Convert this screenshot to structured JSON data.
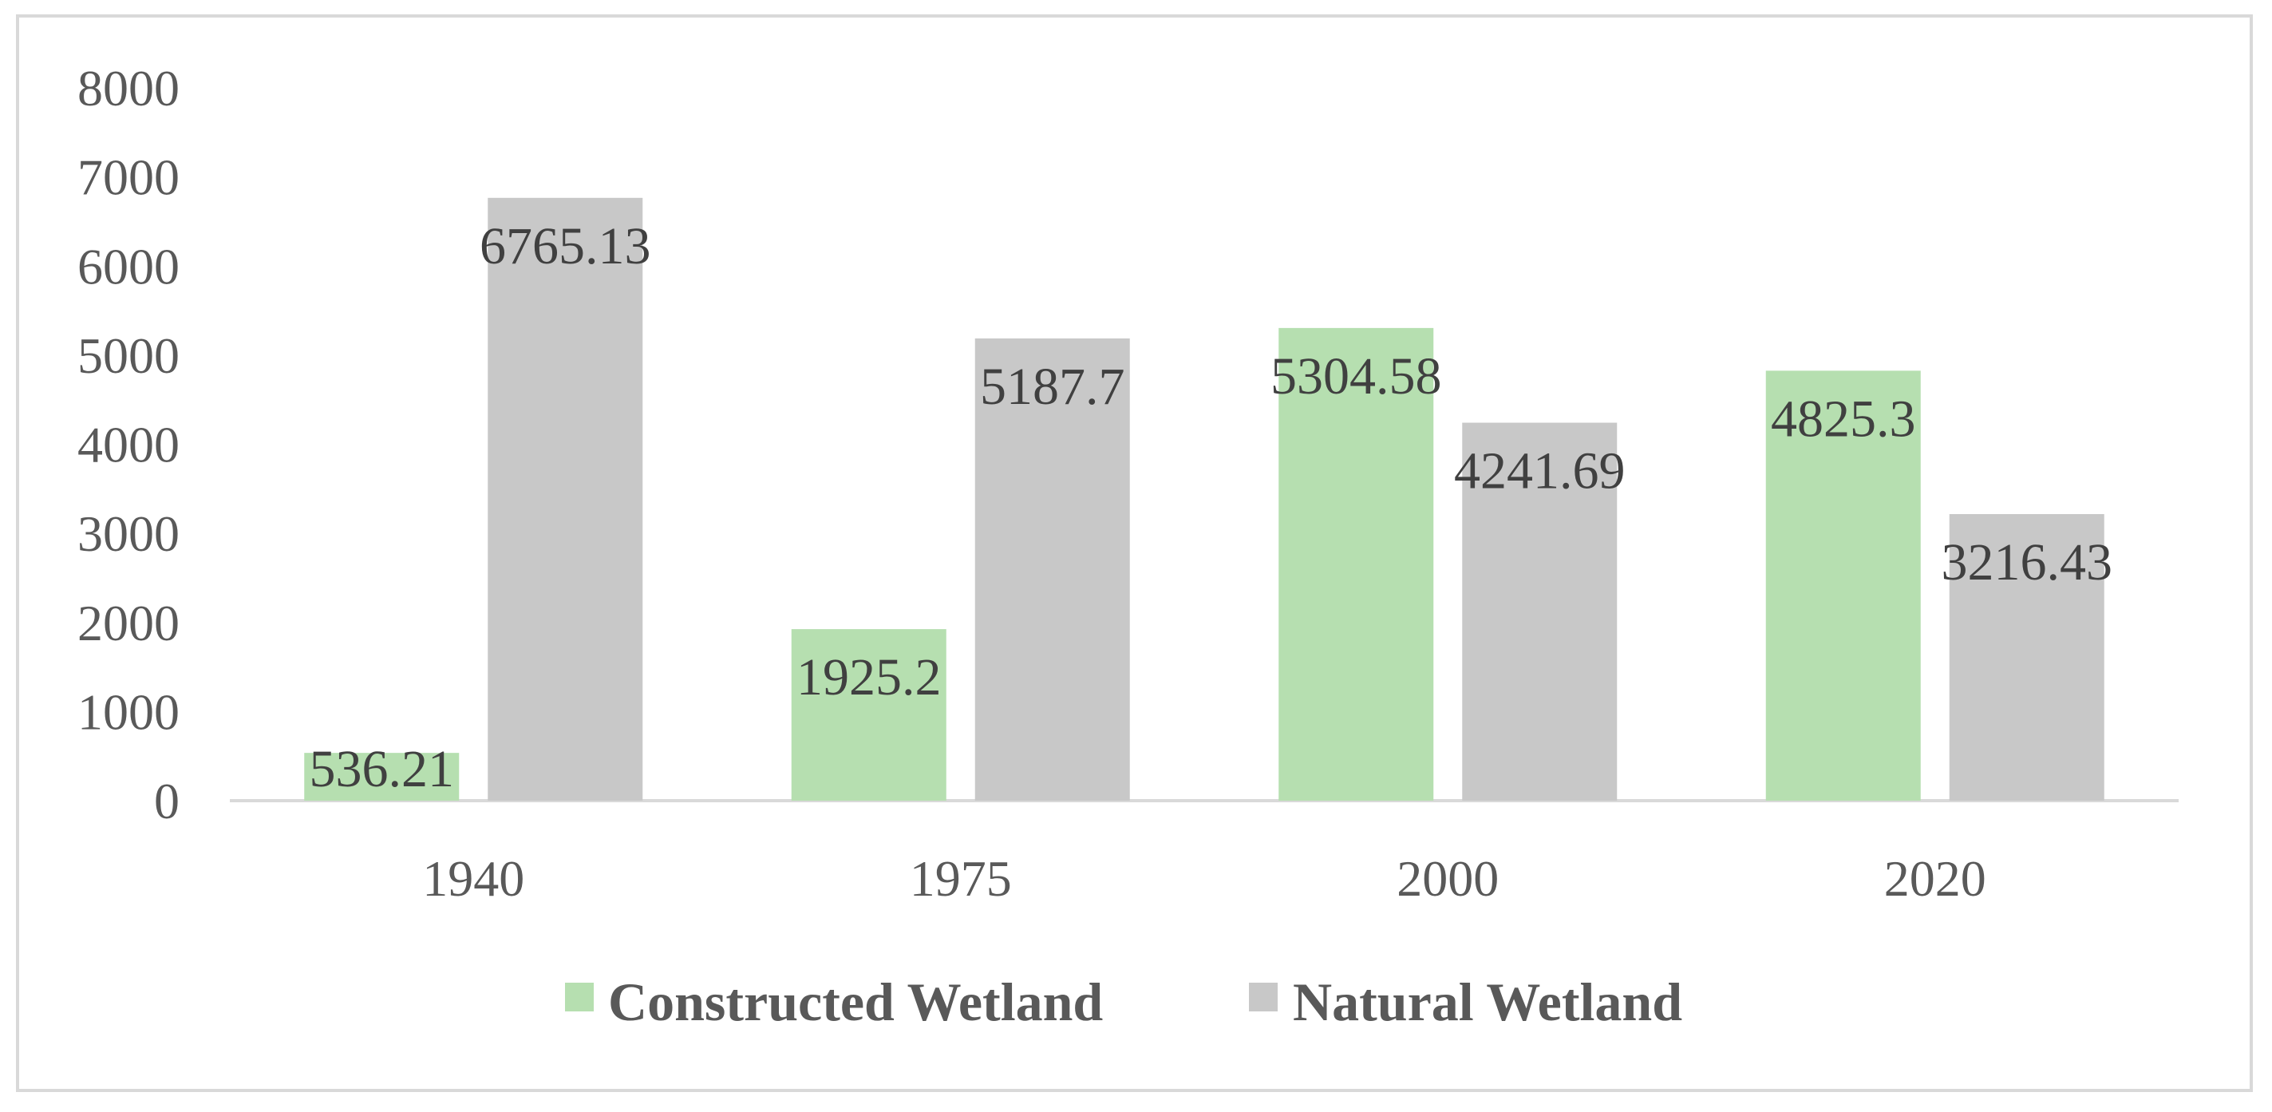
{
  "chart_data": {
    "type": "bar",
    "title": "",
    "xlabel": "",
    "ylabel": "",
    "categories": [
      "1940",
      "1975",
      "2000",
      "2020"
    ],
    "series": [
      {
        "name": "Constructed Wetland",
        "color": "#b6dfb0",
        "values": [
          536.21,
          1925.2,
          5304.58,
          4825.3
        ],
        "labels": [
          "536.21",
          "1925.2",
          "5304.58",
          "4825.3"
        ]
      },
      {
        "name": "Natural Wetland",
        "color": "#c8c8c8",
        "values": [
          6765.13,
          5187.7,
          4241.69,
          3216.43
        ],
        "labels": [
          "6765.13",
          "5187.7",
          "4241.69",
          "3216.43"
        ]
      }
    ],
    "ylim": [
      0,
      8000
    ],
    "yticks": [
      "0",
      "1000",
      "2000",
      "3000",
      "4000",
      "5000",
      "6000",
      "7000",
      "8000"
    ],
    "grid": false,
    "legend": "bottom-center",
    "axis_color": "#d9d9d9"
  }
}
